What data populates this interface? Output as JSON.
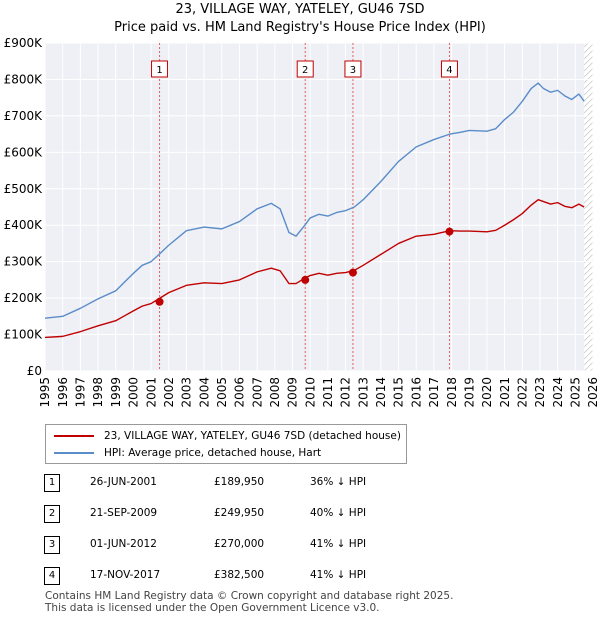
{
  "title_line1": "23, VILLAGE WAY, YATELEY, GU46 7SD",
  "title_line2": "Price paid vs. HM Land Registry's House Price Index (HPI)",
  "chart_data": {
    "type": "line",
    "xlim": [
      1995,
      2026
    ],
    "ylim": [
      0,
      900000
    ],
    "x_ticks": [
      "1995",
      "1996",
      "1997",
      "1998",
      "1999",
      "2000",
      "2001",
      "2002",
      "2003",
      "2004",
      "2005",
      "2006",
      "2007",
      "2008",
      "2009",
      "2010",
      "2011",
      "2012",
      "2013",
      "2014",
      "2015",
      "2016",
      "2017",
      "2018",
      "2019",
      "2020",
      "2021",
      "2022",
      "2023",
      "2024",
      "2025",
      "2026"
    ],
    "y_ticks": [
      {
        "value": 0,
        "label": "£0"
      },
      {
        "value": 100000,
        "label": "£100K"
      },
      {
        "value": 200000,
        "label": "£200K"
      },
      {
        "value": 300000,
        "label": "£300K"
      },
      {
        "value": 400000,
        "label": "£400K"
      },
      {
        "value": 500000,
        "label": "£500K"
      },
      {
        "value": 600000,
        "label": "£600K"
      },
      {
        "value": 700000,
        "label": "£700K"
      },
      {
        "value": 800000,
        "label": "£800K"
      },
      {
        "value": 900000,
        "label": "£900K"
      }
    ],
    "series": [
      {
        "name": "HPI: Average price, detached house, Hart",
        "color": "#5a8cc8",
        "x": [
          1995,
          1996,
          1997,
          1998,
          1999,
          2000,
          2000.5,
          2001,
          2001.5,
          2002,
          2003,
          2004,
          2005,
          2006,
          2007,
          2007.8,
          2008.3,
          2008.8,
          2009.2,
          2009.7,
          2010,
          2010.5,
          2011,
          2011.5,
          2012,
          2012.5,
          2013,
          2014,
          2015,
          2016,
          2017,
          2017.9,
          2018.5,
          2019,
          2020,
          2020.5,
          2021,
          2021.5,
          2022,
          2022.5,
          2022.9,
          2023.2,
          2023.6,
          2024,
          2024.4,
          2024.8,
          2025.2,
          2025.5
        ],
        "y": [
          145000,
          150000,
          172000,
          198000,
          220000,
          268000,
          290000,
          300000,
          322000,
          345000,
          385000,
          395000,
          390000,
          410000,
          445000,
          460000,
          445000,
          380000,
          370000,
          400000,
          420000,
          430000,
          425000,
          435000,
          440000,
          450000,
          470000,
          520000,
          575000,
          615000,
          635000,
          650000,
          655000,
          660000,
          658000,
          665000,
          690000,
          710000,
          740000,
          775000,
          790000,
          775000,
          765000,
          770000,
          755000,
          745000,
          760000,
          740000
        ]
      },
      {
        "name": "23, VILLAGE WAY, YATELEY, GU46 7SD (detached house)",
        "color": "#c00000",
        "x": [
          1995,
          1996,
          1997,
          1998,
          1999,
          2000,
          2000.5,
          2001,
          2001.5,
          2002,
          2003,
          2004,
          2005,
          2006,
          2007,
          2007.8,
          2008.3,
          2008.8,
          2009.2,
          2009.7,
          2010,
          2010.5,
          2011,
          2011.5,
          2012,
          2012.5,
          2013,
          2014,
          2015,
          2016,
          2017,
          2017.9,
          2018.5,
          2019,
          2020,
          2020.5,
          2021,
          2021.5,
          2022,
          2022.5,
          2022.9,
          2023.2,
          2023.6,
          2024,
          2024.4,
          2024.8,
          2025.2,
          2025.5
        ],
        "y": [
          92000,
          95000,
          108000,
          124000,
          138000,
          165000,
          178000,
          185000,
          200000,
          215000,
          235000,
          242000,
          240000,
          250000,
          272000,
          282000,
          275000,
          240000,
          240000,
          255000,
          262000,
          268000,
          263000,
          268000,
          270000,
          276000,
          290000,
          320000,
          350000,
          370000,
          375000,
          385000,
          384000,
          384000,
          382000,
          386000,
          400000,
          415000,
          432000,
          455000,
          470000,
          465000,
          458000,
          462000,
          452000,
          448000,
          458000,
          450000
        ]
      }
    ],
    "sales": [
      {
        "label": "1",
        "x": 2001.48,
        "y": 189950
      },
      {
        "label": "2",
        "x": 2009.72,
        "y": 249950
      },
      {
        "label": "3",
        "x": 2012.42,
        "y": 270000
      },
      {
        "label": "4",
        "x": 2017.88,
        "y": 382500
      }
    ],
    "forecast_start": 2025.5
  },
  "legend": {
    "property_label": "23, VILLAGE WAY, YATELEY, GU46 7SD (detached house)",
    "hpi_label": "HPI: Average price, detached house, Hart",
    "property_color": "#c00000",
    "hpi_color": "#5a8cc8"
  },
  "transactions": [
    {
      "num": "1",
      "date": "26-JUN-2001",
      "price": "£189,950",
      "hpi": "36% ↓ HPI"
    },
    {
      "num": "2",
      "date": "21-SEP-2009",
      "price": "£249,950",
      "hpi": "40% ↓ HPI"
    },
    {
      "num": "3",
      "date": "01-JUN-2012",
      "price": "£270,000",
      "hpi": "41% ↓ HPI"
    },
    {
      "num": "4",
      "date": "17-NOV-2017",
      "price": "£382,500",
      "hpi": "41% ↓ HPI"
    }
  ],
  "footer_line1": "Contains HM Land Registry data © Crown copyright and database right 2025.",
  "footer_line2": "This data is licensed under the Open Government Licence v3.0."
}
